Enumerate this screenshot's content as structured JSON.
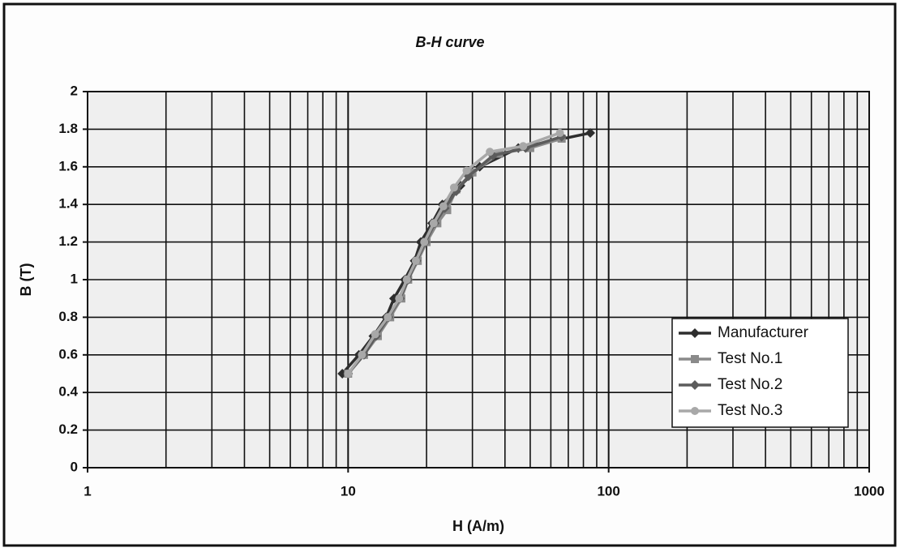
{
  "chart_data": {
    "type": "line",
    "title": "B-H curve",
    "x_label": "H (A/m)",
    "y_label": "B (T)",
    "xscale": "log",
    "xlim": [
      1,
      1000
    ],
    "xticks": [
      1,
      10,
      100,
      1000
    ],
    "ylim": [
      0,
      2
    ],
    "yticks": [
      0,
      0.2,
      0.4,
      0.6,
      0.8,
      1,
      1.2,
      1.4,
      1.6,
      1.8,
      2
    ],
    "grid": true,
    "minor_grid": true,
    "legend": "lower right",
    "series": [
      {
        "name": "Manufacturer",
        "color": "#2e2e2e",
        "marker": "diamond",
        "x": [
          9.5,
          11,
          12.5,
          14,
          15,
          16.5,
          18,
          19,
          21,
          23,
          27,
          32,
          45,
          85
        ],
        "values": [
          0.5,
          0.6,
          0.7,
          0.8,
          0.9,
          1.0,
          1.1,
          1.2,
          1.3,
          1.4,
          1.5,
          1.6,
          1.7,
          1.78
        ]
      },
      {
        "name": "Test No.1",
        "color": "#8a8a8a",
        "marker": "square",
        "x": [
          10,
          11.5,
          13,
          14.5,
          16,
          17,
          18.5,
          20,
          22,
          24,
          26,
          30,
          38,
          50,
          66
        ],
        "values": [
          0.5,
          0.6,
          0.7,
          0.8,
          0.9,
          1.0,
          1.1,
          1.2,
          1.3,
          1.37,
          1.48,
          1.57,
          1.67,
          1.7,
          1.75
        ]
      },
      {
        "name": "Test No.2",
        "color": "#5c5c5c",
        "marker": "diamond",
        "x": [
          10,
          11.5,
          12.8,
          14.3,
          15.8,
          17,
          18.3,
          19.8,
          21.5,
          23.5,
          26,
          29,
          36,
          48,
          66
        ],
        "values": [
          0.5,
          0.6,
          0.7,
          0.8,
          0.9,
          1.0,
          1.1,
          1.2,
          1.3,
          1.38,
          1.47,
          1.55,
          1.66,
          1.7,
          1.76
        ]
      },
      {
        "name": "Test No.3",
        "color": "#a8a8a8",
        "marker": "circle",
        "x": [
          10,
          11.3,
          12.7,
          14.2,
          15.7,
          16.8,
          18.2,
          19.6,
          21.3,
          23.2,
          25.5,
          28.5,
          35,
          47,
          65
        ],
        "values": [
          0.5,
          0.6,
          0.71,
          0.8,
          0.9,
          1.0,
          1.1,
          1.2,
          1.3,
          1.39,
          1.49,
          1.58,
          1.68,
          1.71,
          1.78
        ]
      }
    ]
  }
}
